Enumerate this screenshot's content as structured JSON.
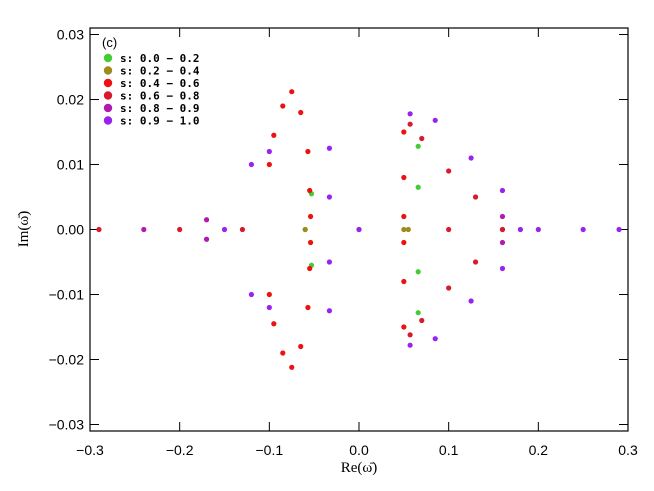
{
  "chart_data": {
    "type": "scatter",
    "panel_label": "(c)",
    "xlabel": "Re(ω̄)",
    "ylabel": "Im(ω̄)",
    "xlim": [
      -0.3,
      0.3
    ],
    "ylim": [
      -0.031,
      0.031
    ],
    "xticks": [
      -0.3,
      -0.2,
      -0.1,
      0.0,
      0.1,
      0.2,
      0.3
    ],
    "xtick_labels": [
      "−0.3",
      "−0.2",
      "−0.1",
      "0.0",
      "0.1",
      "0.2",
      "0.3"
    ],
    "yticks": [
      -0.03,
      -0.02,
      -0.01,
      0.0,
      0.01,
      0.02,
      0.03
    ],
    "ytick_labels": [
      "−0.03",
      "−0.02",
      "−0.01",
      "0.00",
      "0.01",
      "0.02",
      "0.03"
    ],
    "grid": false,
    "legend_position": "top-left",
    "series": [
      {
        "name": "s: 0.0 − 0.2",
        "color": "#44cc33",
        "points": [
          [
            0.066,
            0.0128
          ],
          [
            0.066,
            0.0065
          ],
          [
            0.066,
            -0.0065
          ],
          [
            0.066,
            -0.0128
          ],
          [
            -0.053,
            0.0055
          ],
          [
            -0.053,
            -0.0055
          ],
          [
            -0.06,
            0.0
          ],
          [
            0.0,
            0.0
          ]
        ]
      },
      {
        "name": "s: 0.2 − 0.4",
        "color": "#a08a1a",
        "points": [
          [
            0.05,
            0.0
          ],
          [
            0.055,
            0.0
          ],
          [
            -0.06,
            0.0
          ],
          [
            0.16,
            0.0
          ]
        ]
      },
      {
        "name": "s: 0.4 − 0.6",
        "color": "#ee1111",
        "points": [
          [
            -0.075,
            0.0212
          ],
          [
            -0.085,
            0.019
          ],
          [
            -0.095,
            0.0145
          ],
          [
            -0.1,
            0.01
          ],
          [
            -0.065,
            0.018
          ],
          [
            -0.057,
            0.012
          ],
          [
            -0.055,
            0.006
          ],
          [
            -0.054,
            0.002
          ],
          [
            -0.075,
            -0.0212
          ],
          [
            -0.085,
            -0.019
          ],
          [
            -0.095,
            -0.0145
          ],
          [
            -0.1,
            -0.01
          ],
          [
            -0.065,
            -0.018
          ],
          [
            -0.057,
            -0.012
          ],
          [
            -0.055,
            -0.006
          ],
          [
            -0.054,
            -0.002
          ],
          [
            0.05,
            0.015
          ],
          [
            0.05,
            0.008
          ],
          [
            0.05,
            0.002
          ],
          [
            0.05,
            -0.015
          ],
          [
            0.05,
            -0.008
          ],
          [
            0.05,
            -0.002
          ]
        ]
      },
      {
        "name": "s: 0.6 − 0.8",
        "color": "#d81a2e",
        "points": [
          [
            0.057,
            0.0162
          ],
          [
            0.07,
            0.014
          ],
          [
            0.1,
            0.009
          ],
          [
            0.13,
            0.005
          ],
          [
            0.16,
            0.0
          ],
          [
            0.057,
            -0.0162
          ],
          [
            0.07,
            -0.014
          ],
          [
            0.1,
            -0.009
          ],
          [
            0.13,
            -0.005
          ],
          [
            -0.29,
            0.0
          ],
          [
            -0.2,
            0.0
          ],
          [
            -0.13,
            0.0
          ],
          [
            0.1,
            0.0
          ]
        ]
      },
      {
        "name": "s: 0.8 − 0.9",
        "color": "#b01ab0",
        "points": [
          [
            -0.17,
            0.0015
          ],
          [
            -0.17,
            -0.0015
          ],
          [
            -0.24,
            0.0
          ],
          [
            0.16,
            0.002
          ],
          [
            0.16,
            -0.002
          ]
        ]
      },
      {
        "name": "s: 0.9 − 1.0",
        "color": "#9922ee",
        "points": [
          [
            0.057,
            0.0178
          ],
          [
            0.085,
            0.0168
          ],
          [
            0.125,
            0.011
          ],
          [
            0.16,
            0.006
          ],
          [
            0.18,
            0.0
          ],
          [
            0.057,
            -0.0178
          ],
          [
            0.085,
            -0.0168
          ],
          [
            0.125,
            -0.011
          ],
          [
            0.16,
            -0.006
          ],
          [
            -0.12,
            0.01
          ],
          [
            -0.1,
            0.012
          ],
          [
            -0.12,
            -0.01
          ],
          [
            -0.1,
            -0.012
          ],
          [
            -0.033,
            0.0125
          ],
          [
            -0.033,
            0.005
          ],
          [
            -0.033,
            -0.005
          ],
          [
            -0.033,
            -0.0125
          ],
          [
            0.0,
            0.0
          ],
          [
            0.2,
            0.0
          ],
          [
            0.25,
            0.0
          ],
          [
            0.29,
            0.0
          ],
          [
            -0.15,
            0.0
          ]
        ]
      }
    ]
  }
}
